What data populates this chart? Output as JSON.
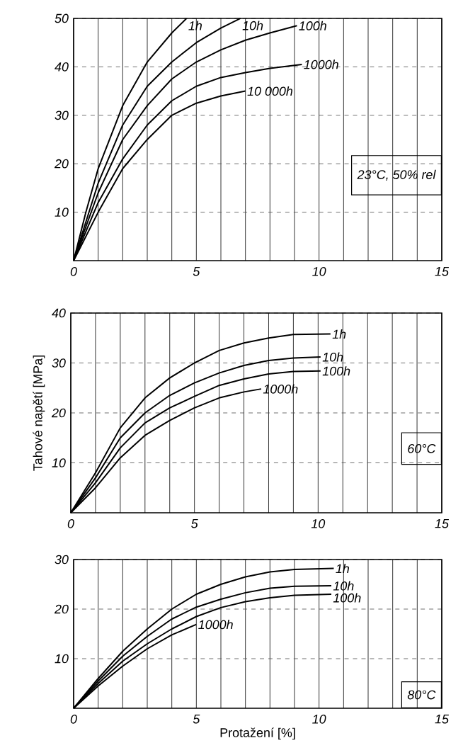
{
  "chart_data": [
    {
      "type": "line",
      "xlim": [
        0,
        15
      ],
      "ylim": [
        0,
        50
      ],
      "xticks": [
        0,
        {
          "value": 1,
          "label": null
        },
        {
          "value": 2,
          "label": null
        },
        {
          "value": 3,
          "label": null
        },
        {
          "value": 4,
          "label": null
        },
        5,
        {
          "value": 6,
          "label": null
        },
        {
          "value": 7,
          "label": null
        },
        {
          "value": 8,
          "label": null
        },
        {
          "value": 9,
          "label": null
        },
        10,
        {
          "value": 11,
          "label": null
        },
        {
          "value": 12,
          "label": null
        },
        {
          "value": 13,
          "label": null
        },
        {
          "value": 14,
          "label": null
        },
        15
      ],
      "yticks": [
        10,
        20,
        30,
        40,
        50
      ],
      "grid": true,
      "line_style": "solid",
      "annotations": [
        "23°C, 50% rel"
      ],
      "series": [
        {
          "name": "1h",
          "color": "#000000",
          "x": [
            0,
            0.5,
            1,
            2,
            3,
            4,
            4.6
          ],
          "values": [
            0,
            10,
            19,
            32,
            41,
            47,
            50
          ]
        },
        {
          "name": "10h",
          "color": "#000000",
          "x": [
            0,
            1,
            2,
            3,
            4,
            5,
            6,
            6.8
          ],
          "values": [
            0,
            16,
            28,
            36,
            41,
            45,
            48,
            50
          ]
        },
        {
          "name": "100h",
          "color": "#000000",
          "x": [
            0,
            1,
            2,
            3,
            4,
            5,
            6,
            7,
            8,
            9.1
          ],
          "values": [
            0,
            14,
            25,
            32,
            37.5,
            41,
            43.5,
            45.5,
            47,
            48.5
          ]
        },
        {
          "name": "1000h",
          "color": "#000000",
          "x": [
            0,
            1,
            2,
            3,
            4,
            5,
            6,
            7,
            8,
            9.3
          ],
          "values": [
            0,
            12,
            21,
            28,
            33,
            36,
            37.8,
            38.8,
            39.7,
            40.5
          ]
        },
        {
          "name": "10 000h",
          "color": "#000000",
          "x": [
            0,
            1,
            2,
            3,
            4,
            5,
            6,
            7
          ],
          "values": [
            0,
            10,
            19,
            25,
            30,
            32.5,
            34,
            35
          ]
        }
      ]
    },
    {
      "type": "line",
      "xlim": [
        0,
        15
      ],
      "ylim": [
        0,
        40
      ],
      "ylabel": "Tahové napětí [MPa]",
      "xticks": [
        0,
        {
          "value": 1,
          "label": null
        },
        {
          "value": 2,
          "label": null
        },
        {
          "value": 3,
          "label": null
        },
        {
          "value": 4,
          "label": null
        },
        5,
        {
          "value": 6,
          "label": null
        },
        {
          "value": 7,
          "label": null
        },
        {
          "value": 8,
          "label": null
        },
        {
          "value": 9,
          "label": null
        },
        10,
        {
          "value": 11,
          "label": null
        },
        {
          "value": 12,
          "label": null
        },
        {
          "value": 13,
          "label": null
        },
        {
          "value": 14,
          "label": null
        },
        15
      ],
      "yticks": [
        10,
        20,
        30,
        40
      ],
      "grid": true,
      "line_style": "solid",
      "annotations": [
        "60°C"
      ],
      "series": [
        {
          "name": "1h",
          "color": "#000000",
          "x": [
            0,
            1,
            2,
            3,
            4,
            5,
            6,
            7,
            8,
            9,
            10.5
          ],
          "values": [
            0,
            8,
            17,
            23,
            27,
            30,
            32.5,
            34,
            35,
            35.7,
            35.8
          ]
        },
        {
          "name": "10h",
          "color": "#000000",
          "x": [
            0,
            1,
            2,
            3,
            4,
            5,
            6,
            7,
            8,
            9,
            10.1
          ],
          "values": [
            0,
            7,
            15,
            20,
            23.5,
            26,
            28,
            29.5,
            30.5,
            31,
            31.2
          ]
        },
        {
          "name": "100h",
          "color": "#000000",
          "x": [
            0,
            1,
            2,
            3,
            4,
            5,
            6,
            7,
            8,
            9,
            10.1
          ],
          "values": [
            0,
            6,
            13,
            18,
            21,
            23.3,
            25.5,
            26.8,
            27.8,
            28.3,
            28.4
          ]
        },
        {
          "name": "1000h",
          "color": "#000000",
          "x": [
            0,
            1,
            2,
            3,
            4,
            5,
            6,
            7,
            7.7
          ],
          "values": [
            0,
            5,
            11,
            15.5,
            18.5,
            21,
            23,
            24.2,
            24.8
          ]
        }
      ]
    },
    {
      "type": "line",
      "xlim": [
        0,
        15
      ],
      "ylim": [
        0,
        30
      ],
      "xlabel": "Protažení [%]",
      "xticks": [
        0,
        {
          "value": 1,
          "label": null
        },
        {
          "value": 2,
          "label": null
        },
        {
          "value": 3,
          "label": null
        },
        {
          "value": 4,
          "label": null
        },
        5,
        {
          "value": 6,
          "label": null
        },
        {
          "value": 7,
          "label": null
        },
        {
          "value": 8,
          "label": null
        },
        {
          "value": 9,
          "label": null
        },
        10,
        {
          "value": 11,
          "label": null
        },
        {
          "value": 12,
          "label": null
        },
        {
          "value": 13,
          "label": null
        },
        {
          "value": 14,
          "label": null
        },
        15
      ],
      "yticks": [
        10,
        20,
        30
      ],
      "grid": true,
      "line_style": "solid",
      "annotations": [
        "80°C"
      ],
      "series": [
        {
          "name": "1h",
          "color": "#000000",
          "x": [
            0,
            1,
            2,
            3,
            4,
            5,
            6,
            7,
            8,
            9,
            10.6
          ],
          "values": [
            0,
            6,
            11.5,
            16,
            20,
            23,
            25,
            26.5,
            27.5,
            28,
            28.2
          ]
        },
        {
          "name": "10h",
          "color": "#000000",
          "x": [
            0,
            1,
            2,
            3,
            4,
            5,
            6,
            7,
            8,
            9,
            10.5
          ],
          "values": [
            0,
            5.5,
            10.5,
            14.5,
            18,
            20.4,
            22,
            23.3,
            24.2,
            24.6,
            24.7
          ]
        },
        {
          "name": "100h",
          "color": "#000000",
          "x": [
            0,
            1,
            2,
            3,
            4,
            5,
            6,
            7,
            8,
            9,
            10.5
          ],
          "values": [
            0,
            5,
            9.5,
            13,
            16,
            18.5,
            20.3,
            21.5,
            22.3,
            22.8,
            23
          ]
        },
        {
          "name": "1000h",
          "color": "#000000",
          "x": [
            0,
            1,
            2,
            3,
            4,
            5
          ],
          "values": [
            0,
            4.5,
            8.5,
            12,
            14.8,
            16.9
          ]
        }
      ]
    }
  ]
}
